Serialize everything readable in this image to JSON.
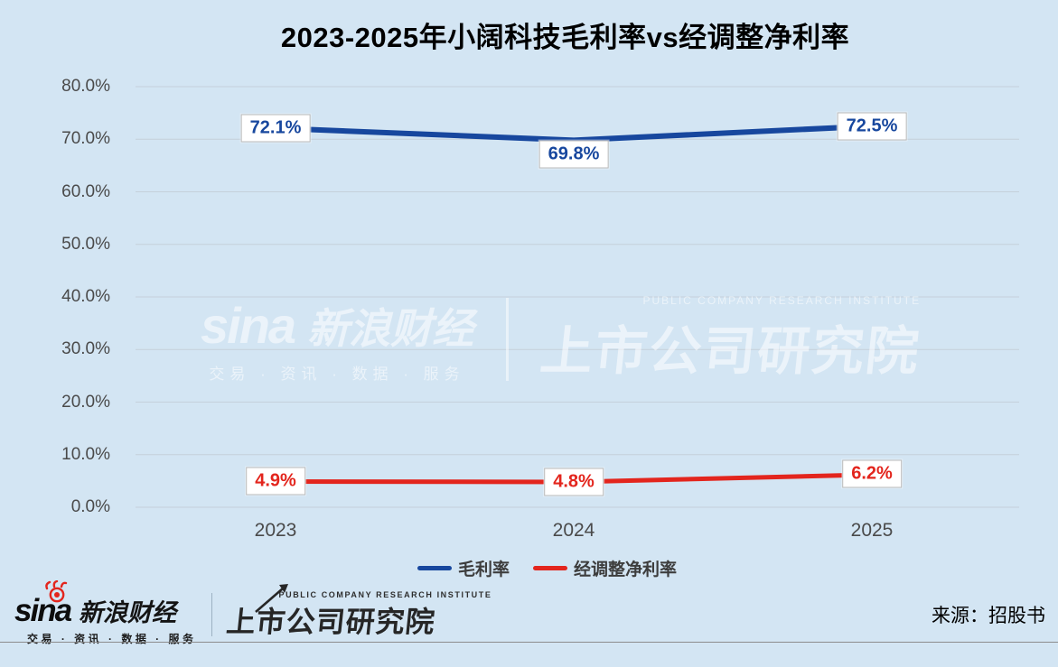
{
  "title": "2023-2025年小阔科技毛利率vs经调整净利率",
  "chart_data": {
    "type": "line",
    "categories": [
      "2023",
      "2024",
      "2025"
    ],
    "series": [
      {
        "name": "毛利率",
        "color": "#17479e",
        "values": [
          72.1,
          69.8,
          72.5
        ],
        "point_labels": [
          "72.1%",
          "69.8%",
          "72.5%"
        ]
      },
      {
        "name": "经调整净利率",
        "color": "#e3251d",
        "values": [
          4.9,
          4.8,
          6.2
        ],
        "point_labels": [
          "4.9%",
          "4.8%",
          "6.2%"
        ]
      }
    ],
    "ylim": [
      0,
      80
    ],
    "ytick_step": 10,
    "ytick_labels": [
      "0.0%",
      "10.0%",
      "20.0%",
      "30.0%",
      "40.0%",
      "50.0%",
      "60.0%",
      "70.0%",
      "80.0%"
    ],
    "grid": true,
    "legend_position": "bottom"
  },
  "watermark": {
    "sina_text": "sina",
    "brand": "新浪财经",
    "services": "交易 · 资讯 · 数据 · 服务",
    "institute": "上市公司研究院",
    "institute_en": "PUBLIC COMPANY RESEARCH INSTITUTE"
  },
  "footer": {
    "sina_text": "sina",
    "brand": "新浪财经",
    "services": "交易 · 资讯 · 数据 · 服务",
    "institute": "上市公司研究院",
    "institute_en": "PUBLIC COMPANY RESEARCH INSTITUTE",
    "source": "来源：招股书"
  },
  "colors": {
    "background": "#d3e5f3",
    "gridline": "#b9bfc6",
    "axis_text": "#4a4a4a",
    "series_blue": "#17479e",
    "series_red": "#e3251d"
  }
}
